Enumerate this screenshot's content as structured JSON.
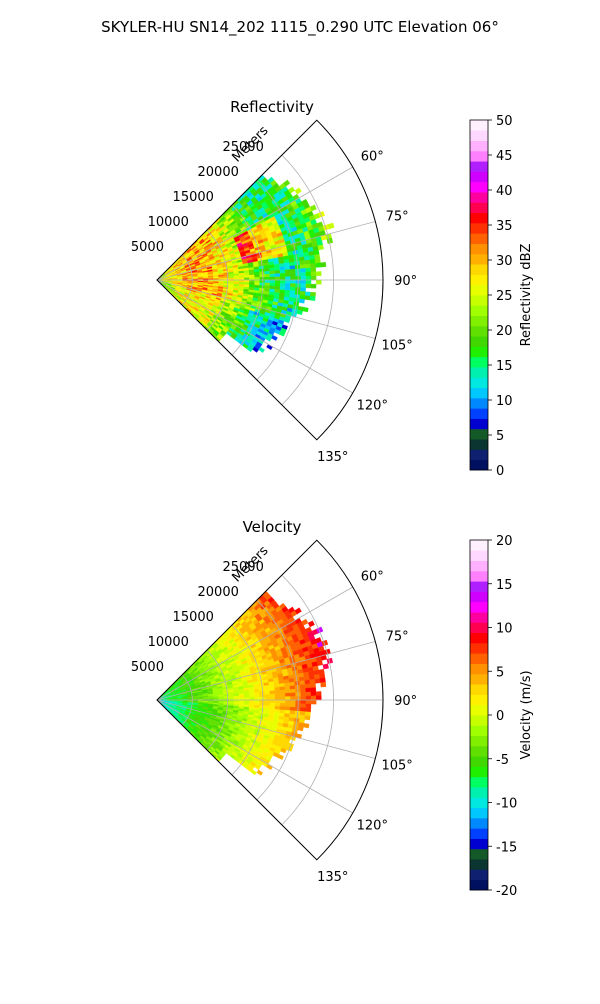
{
  "figure_title": "SKYLER-HU  SN14_202  1115_0.290 UTC Elevation 06°",
  "chart_data": [
    {
      "type": "heatmap",
      "projection": "polar-sector",
      "title": "Reflectivity",
      "radial_axis_label": "Meters",
      "radial_ticks": [
        5000,
        10000,
        15000,
        20000,
        25000
      ],
      "radial_tick_labels": [
        "5000",
        "10000",
        "15000",
        "20000",
        "25000"
      ],
      "radial_range": [
        0,
        32000
      ],
      "angle_range_deg": [
        45,
        135
      ],
      "angle_ticks": [
        60,
        75,
        90,
        105,
        120,
        135
      ],
      "angle_tick_labels": [
        "60°",
        "75°",
        "90°",
        "105°",
        "120°",
        "135°"
      ],
      "grid": true,
      "colorbar": {
        "label": "Reflectivity dBZ",
        "range": [
          0,
          50
        ],
        "ticks": [
          0,
          5,
          10,
          15,
          20,
          25,
          30,
          35,
          40,
          45,
          50
        ],
        "tick_labels": [
          "0",
          "5",
          "10",
          "15",
          "20",
          "25",
          "30",
          "35",
          "40",
          "45",
          "50"
        ],
        "colors": [
          "#001060",
          "#102070",
          "#0a3530",
          "#145a28",
          "#0000d0",
          "#0040ff",
          "#0088ff",
          "#00c8ff",
          "#00e8e0",
          "#00f0b0",
          "#00ff60",
          "#20f000",
          "#40d800",
          "#60e000",
          "#80f000",
          "#a0ff00",
          "#c8ff00",
          "#e8ff00",
          "#fff000",
          "#ffd800",
          "#ffb000",
          "#ff9000",
          "#ff6000",
          "#ff3000",
          "#ff0000",
          "#ff0050",
          "#ff00a0",
          "#ff00ff",
          "#d000ff",
          "#b020ff",
          "#ff80ff",
          "#ffb0ff",
          "#ffd8ff",
          "#fff0ff"
        ]
      }
    },
    {
      "type": "heatmap",
      "projection": "polar-sector",
      "title": "Velocity",
      "radial_axis_label": "Meters",
      "radial_ticks": [
        5000,
        10000,
        15000,
        20000,
        25000
      ],
      "radial_tick_labels": [
        "5000",
        "10000",
        "15000",
        "20000",
        "25000"
      ],
      "radial_range": [
        0,
        32000
      ],
      "angle_range_deg": [
        45,
        135
      ],
      "angle_ticks": [
        60,
        75,
        90,
        105,
        120,
        135
      ],
      "angle_tick_labels": [
        "60°",
        "75°",
        "90°",
        "105°",
        "120°",
        "135°"
      ],
      "grid": true,
      "colorbar": {
        "label": "Velocity (m/s)",
        "range": [
          -20,
          20
        ],
        "ticks": [
          -20,
          -15,
          -10,
          -5,
          0,
          5,
          10,
          15,
          20
        ],
        "tick_labels": [
          "-20",
          "-15",
          "-10",
          "-5",
          "0",
          "5",
          "10",
          "15",
          "20"
        ],
        "colors": [
          "#001060",
          "#102070",
          "#0a3530",
          "#145a28",
          "#0000d0",
          "#0040ff",
          "#0088ff",
          "#00c8ff",
          "#00e8e0",
          "#00f0b0",
          "#00ff60",
          "#20f000",
          "#40d800",
          "#60e000",
          "#80f000",
          "#a0ff00",
          "#c8ff00",
          "#e8ff00",
          "#fff000",
          "#ffd800",
          "#ffb000",
          "#ff9000",
          "#ff6000",
          "#ff3000",
          "#ff0000",
          "#ff0050",
          "#ff00a0",
          "#ff00ff",
          "#d000ff",
          "#b020ff",
          "#ff80ff",
          "#ffb0ff",
          "#ffd8ff",
          "#fff0ff"
        ]
      }
    }
  ]
}
